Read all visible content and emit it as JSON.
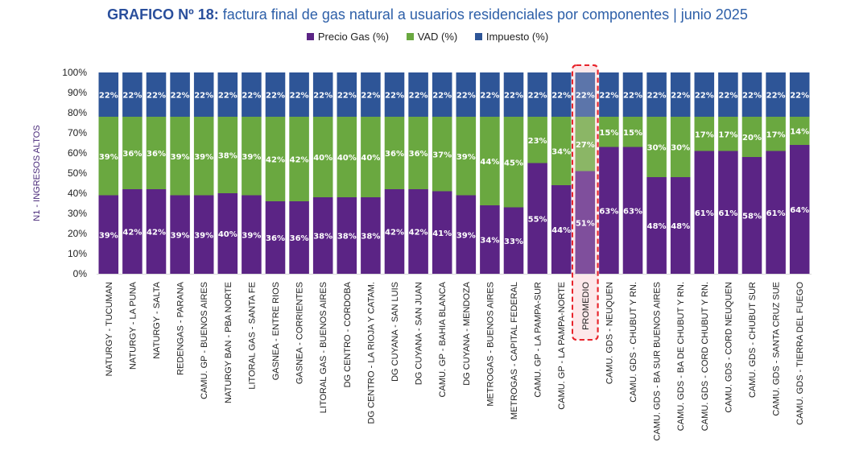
{
  "chart_data": {
    "type": "bar",
    "stacked": true,
    "title_bold": "GRAFICO Nº 18:",
    "title_rest": " factura final de gas natural a usuarios residenciales por componentes | junio 2025",
    "xlabel": "",
    "ylabel": "N1 - INGRESOS ALTOS",
    "ylim": [
      0,
      100
    ],
    "yticks": [
      "0%",
      "10%",
      "20%",
      "30%",
      "40%",
      "50%",
      "60%",
      "70%",
      "80%",
      "90%",
      "100%"
    ],
    "legend_position": "top-center",
    "highlighted_category": "PROMEDIO",
    "categories": [
      "NATURGY - TUCUMAN",
      "NATURGY - LA PUNA",
      "NATURGY - SALTA",
      "REDENGAS - PARANA",
      "CAMU. GP - BUENOS AIRES",
      "NATURGY BAN - PBA NORTE",
      "LITORAL GAS - SANTA FE",
      "GASNEA - ENTRE RIOS",
      "GASNEA - CORRIENTES",
      "LITORAL GAS - BUENOS AIRES",
      "DG CENTRO - CORDOBA",
      "DG CENTRO - LA RIOJA Y CATAM.",
      "DG CUYANA - SAN LUIS",
      "DG CUYANA - SAN JUAN",
      "CAMU. GP - BAHIA BLANCA",
      "DG CUYANA - MENDOZA",
      "METROGAS - BUENOS AIRES",
      "METROGAS - CAPITAL FEDERAL",
      "CAMU. GP - LA PAMPA-SUR",
      "CAMU. GP - LA PAMPA-NORTE",
      "PROMEDIO",
      "CAMU. GDS - NEUQUEN",
      "CAMU. GDS - CHUBUT Y RN.",
      "CAMU. GDS - BA SUR BUENOS AIRES",
      "CAMU. GDS - BA DE CHUBUT Y RN.",
      "CAMU. GDS - CORD CHUBUT Y RN.",
      "CAMU. GDS - CORD NEUQUEN",
      "CAMU. GDS - CHUBUT SUR",
      "CAMU. GDS - SANTA CRUZ SUE",
      "CAMU. GDS - TIERRA DEL FUEGO"
    ],
    "series": [
      {
        "name": "Precio Gas (%)",
        "color": "#5b2485",
        "values": [
          39,
          42,
          42,
          39,
          39,
          40,
          39,
          36,
          36,
          38,
          38,
          38,
          42,
          42,
          41,
          39,
          34,
          33,
          55,
          44,
          51,
          63,
          63,
          48,
          48,
          61,
          61,
          58,
          61,
          64
        ]
      },
      {
        "name": "VAD (%)",
        "color": "#6aa840",
        "values": [
          39,
          36,
          36,
          39,
          39,
          38,
          39,
          42,
          42,
          40,
          40,
          40,
          36,
          36,
          37,
          39,
          44,
          45,
          23,
          34,
          27,
          15,
          15,
          30,
          30,
          17,
          17,
          20,
          17,
          14
        ]
      },
      {
        "name": "Impuesto (%)",
        "color": "#2e5597",
        "values": [
          22,
          22,
          22,
          22,
          22,
          22,
          22,
          22,
          22,
          22,
          22,
          22,
          22,
          22,
          22,
          22,
          22,
          22,
          22,
          22,
          22,
          22,
          22,
          22,
          22,
          22,
          22,
          22,
          22,
          22
        ]
      }
    ]
  },
  "colors": {
    "title": "#2d5fa8",
    "highlight_outline": "#e8242c",
    "highlight_fill": "#fde8ea"
  }
}
